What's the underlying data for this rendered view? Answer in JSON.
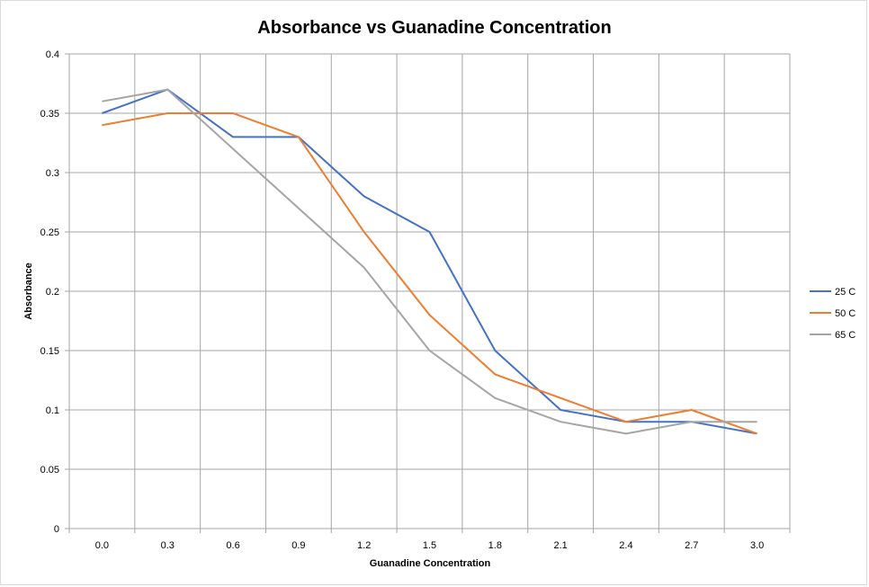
{
  "chart_data": {
    "type": "line",
    "title": "Absorbance vs Guanadine Concentration",
    "xlabel": "Guanadine Concentration",
    "ylabel": "Absorbance",
    "categories": [
      "0.0",
      "0.3",
      "0.6",
      "0.9",
      "1.2",
      "1.5",
      "1.8",
      "2.1",
      "2.4",
      "2.7",
      "3.0"
    ],
    "ylim": [
      0,
      0.4
    ],
    "yticks": [
      "0",
      "0.05",
      "0.1",
      "0.15",
      "0.2",
      "0.25",
      "0.3",
      "0.35",
      "0.4"
    ],
    "grid": true,
    "legend": "right",
    "series": [
      {
        "name": "25 C",
        "color": "#4472C4",
        "values": [
          0.35,
          0.37,
          0.33,
          0.33,
          0.28,
          0.25,
          0.15,
          0.1,
          0.09,
          0.09,
          0.08
        ]
      },
      {
        "name": "50 C",
        "color": "#ED7D31",
        "values": [
          0.34,
          0.35,
          0.35,
          0.33,
          0.25,
          0.18,
          0.13,
          0.11,
          0.09,
          0.1,
          0.08
        ]
      },
      {
        "name": "65 C",
        "color": "#A5A5A5",
        "values": [
          0.36,
          0.37,
          0.32,
          0.27,
          0.22,
          0.15,
          0.11,
          0.09,
          0.08,
          0.09,
          0.09
        ]
      }
    ]
  }
}
